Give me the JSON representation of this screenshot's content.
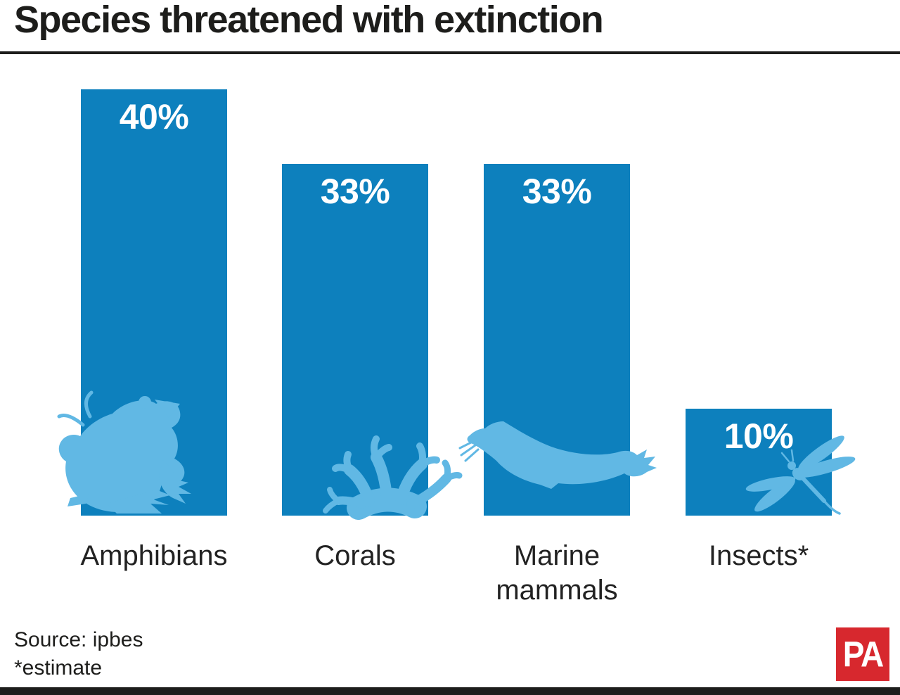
{
  "title": "Species threatened with extinction",
  "source": {
    "line1": "Source: ipbes",
    "line2": "*estimate"
  },
  "logo": {
    "text": "PA"
  },
  "colors": {
    "bar": "#0d80bd",
    "silhouette": "#61b8e4",
    "accent": "#d7282e",
    "ink": "#1d1d1b"
  },
  "chart_data": {
    "type": "bar",
    "title": "Species threatened with extinction",
    "categories": [
      "Amphibians",
      "Corals",
      "Marine mammals",
      "Insects*"
    ],
    "values": [
      40,
      33,
      33,
      10
    ],
    "value_labels": [
      "40%",
      "33%",
      "33%",
      "10%"
    ],
    "unit": "percent",
    "ylim": [
      0,
      40
    ],
    "grid": false,
    "legend": false,
    "bar_color": "#0d80bd",
    "bar_icons": [
      "frog",
      "coral",
      "seal",
      "dragonfly"
    ],
    "source": "Source: ipbes",
    "note": "*estimate"
  }
}
